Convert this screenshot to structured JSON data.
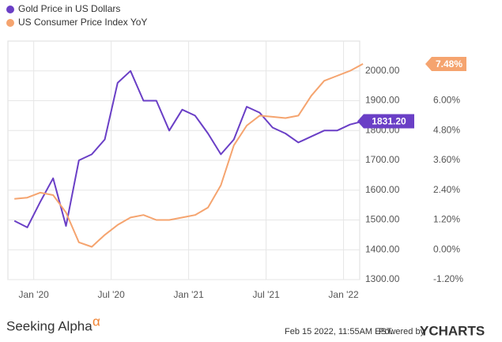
{
  "chart_data": {
    "type": "line",
    "x": [
      "2019-11",
      "2019-12",
      "2020-01",
      "2020-02",
      "2020-03",
      "2020-04",
      "2020-05",
      "2020-06",
      "2020-07",
      "2020-08",
      "2020-09",
      "2020-10",
      "2020-11",
      "2020-12",
      "2021-01",
      "2021-02",
      "2021-03",
      "2021-04",
      "2021-05",
      "2021-06",
      "2021-07",
      "2021-08",
      "2021-09",
      "2021-10",
      "2021-11",
      "2021-12",
      "2022-01",
      "2022-02"
    ],
    "xticks": [
      {
        "value": "2020-01",
        "label": "Jan '20"
      },
      {
        "value": "2020-07",
        "label": "Jul '20"
      },
      {
        "value": "2021-01",
        "label": "Jan '21"
      },
      {
        "value": "2021-07",
        "label": "Jul '21"
      },
      {
        "value": "2022-01",
        "label": "Jan '22"
      }
    ],
    "series": [
      {
        "name": "Gold Price in US Dollars",
        "color": "#6a3fc6",
        "values": [
          1497,
          1475,
          1560,
          1640,
          1480,
          1700,
          1720,
          1770,
          1960,
          2000,
          1900,
          1900,
          1800,
          1870,
          1850,
          1790,
          1720,
          1770,
          1880,
          1860,
          1810,
          1790,
          1760,
          1780,
          1800,
          1800,
          1820,
          1831.2
        ],
        "value_labels": [
          null,
          null,
          null,
          null,
          null,
          null,
          null,
          null,
          null,
          null,
          null,
          null,
          null,
          null,
          null,
          null,
          null,
          null,
          null,
          null,
          null,
          null,
          null,
          null,
          null,
          null,
          null,
          "1831.20"
        ]
      },
      {
        "name": "US Consumer Price Index YoY",
        "color": "#f5a46f",
        "axis": "y2",
        "values": [
          2.05,
          2.1,
          2.3,
          2.2,
          1.5,
          0.3,
          0.12,
          0.6,
          1.0,
          1.3,
          1.4,
          1.2,
          1.2,
          1.3,
          1.4,
          1.7,
          2.6,
          4.2,
          5.0,
          5.4,
          5.35,
          5.3,
          5.4,
          6.2,
          6.8,
          7.0,
          7.2,
          7.48
        ],
        "value_labels": [
          null,
          null,
          null,
          null,
          null,
          null,
          null,
          null,
          null,
          null,
          null,
          null,
          null,
          null,
          null,
          null,
          null,
          null,
          null,
          null,
          null,
          null,
          null,
          null,
          null,
          null,
          null,
          "7.48%"
        ]
      }
    ],
    "ylim": [
      1300,
      2100
    ],
    "yticks": [
      {
        "value": 1300,
        "label": "1300.00"
      },
      {
        "value": 1400,
        "label": "1400.00"
      },
      {
        "value": 1500,
        "label": "1500.00"
      },
      {
        "value": 1600,
        "label": "1600.00"
      },
      {
        "value": 1700,
        "label": "1700.00"
      },
      {
        "value": 1800,
        "label": "1800.00"
      },
      {
        "value": 1900,
        "label": "1900.00"
      },
      {
        "value": 2000,
        "label": "2000.00"
      }
    ],
    "y2lim": [
      -1.2,
      8.4
    ],
    "y2ticks": [
      {
        "value": -1.2,
        "label": "-1.20%"
      },
      {
        "value": 0,
        "label": "0.00%"
      },
      {
        "value": 1.2,
        "label": "1.20%"
      },
      {
        "value": 2.4,
        "label": "2.40%"
      },
      {
        "value": 3.6,
        "label": "3.60%"
      },
      {
        "value": 4.8,
        "label": "4.80%"
      },
      {
        "value": 6,
        "label": "6.00%"
      }
    ],
    "grid": true,
    "legend": "top-left"
  },
  "footer": {
    "brand": "Seeking Alpha",
    "brand_mark": "α",
    "timestamp": "Feb 15 2022, 11:55AM EST.",
    "powered": "Powered by",
    "provider": "YCHARTS"
  }
}
